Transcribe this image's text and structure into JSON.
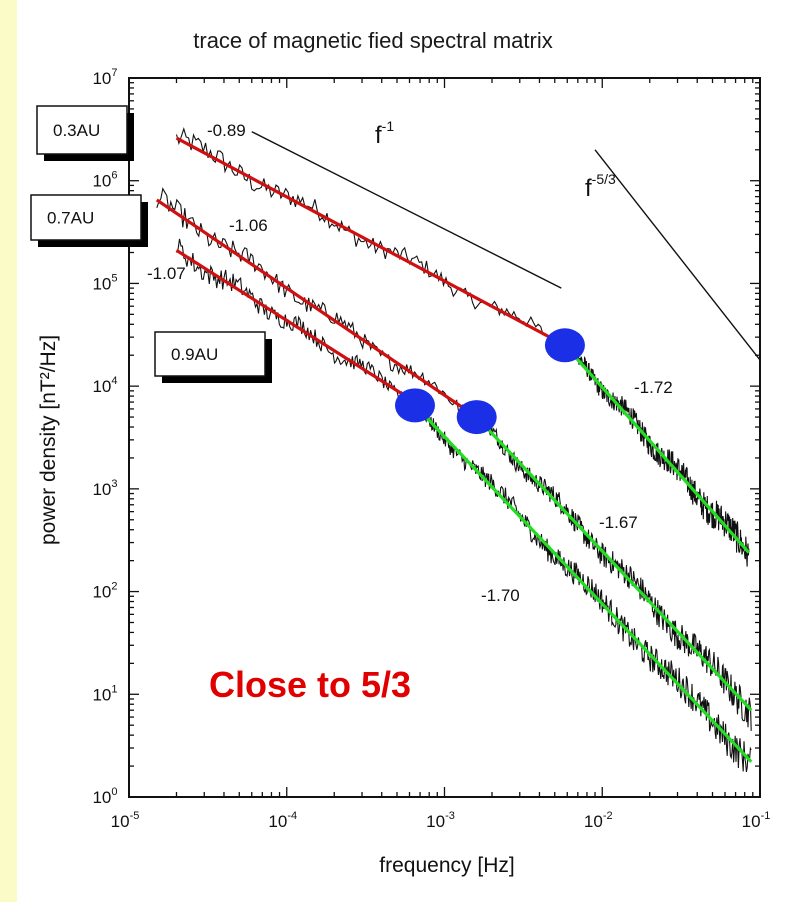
{
  "chart_data": {
    "type": "line",
    "title": "trace of magnetic fied spectral matrix",
    "xlabel": "frequency [Hz]",
    "ylabel": "power density [nT²/Hz]",
    "x_scale": "log",
    "y_scale": "log",
    "xlim": [
      1e-05,
      0.1
    ],
    "ylim": [
      1,
      10000000.0
    ],
    "x_ticks": [
      {
        "base": "10",
        "exp": "-5",
        "value": 1e-05
      },
      {
        "base": "10",
        "exp": "-4",
        "value": 0.0001
      },
      {
        "base": "10",
        "exp": "-3",
        "value": 0.001
      },
      {
        "base": "10",
        "exp": "-2",
        "value": 0.01
      },
      {
        "base": "10",
        "exp": "-1",
        "value": 0.1
      }
    ],
    "y_ticks": [
      {
        "base": "10",
        "exp": "0",
        "value": 1
      },
      {
        "base": "10",
        "exp": "1",
        "value": 10
      },
      {
        "base": "10",
        "exp": "2",
        "value": 100
      },
      {
        "base": "10",
        "exp": "3",
        "value": 1000
      },
      {
        "base": "10",
        "exp": "4",
        "value": 10000
      },
      {
        "base": "10",
        "exp": "5",
        "value": 100000
      },
      {
        "base": "10",
        "exp": "6",
        "value": 1000000
      },
      {
        "base": "10",
        "exp": "7",
        "value": 10000000
      }
    ],
    "series": [
      {
        "name": "0.3AU",
        "low_freq_fit": {
          "slope_label": "-0.89",
          "from": [
            2e-05,
            2600000.0
          ],
          "to": [
            0.0058,
            25000.0
          ]
        },
        "break": [
          0.0058,
          25000.0
        ],
        "high_freq_fit": {
          "slope_label": "-1.72",
          "from": [
            0.0058,
            25000.0
          ],
          "to": [
            0.085,
            240
          ]
        }
      },
      {
        "name": "0.7AU",
        "low_freq_fit": {
          "slope_label": "-1.06",
          "from": [
            1.5e-05,
            650000.0
          ],
          "to": [
            0.0016,
            5000.0
          ]
        },
        "break": [
          0.0016,
          5000.0
        ],
        "high_freq_fit": {
          "slope_label": "-1.67",
          "from": [
            0.0016,
            5000.0
          ],
          "to": [
            0.088,
            7
          ]
        }
      },
      {
        "name": "0.9AU",
        "low_freq_fit": {
          "slope_label": "-1.07",
          "from": [
            2e-05,
            210000.0
          ],
          "to": [
            0.00065,
            7000.0
          ]
        },
        "break": [
          0.00065,
          6500.0
        ],
        "high_freq_fit": {
          "slope_label": "-1.70",
          "from": [
            0.00065,
            6500.0
          ],
          "to": [
            0.088,
            2.2
          ]
        }
      }
    ],
    "reference_lines": [
      {
        "label_base": "f",
        "label_exp": "-1",
        "from": [
          6e-05,
          3000000.0
        ],
        "to": [
          0.0055,
          90000.0
        ]
      },
      {
        "label_base": "f",
        "label_exp": "-5/3",
        "from": [
          0.009,
          2000000.0
        ],
        "to": [
          0.1,
          18000.0
        ]
      }
    ],
    "annotation": "Close to 5/3"
  }
}
